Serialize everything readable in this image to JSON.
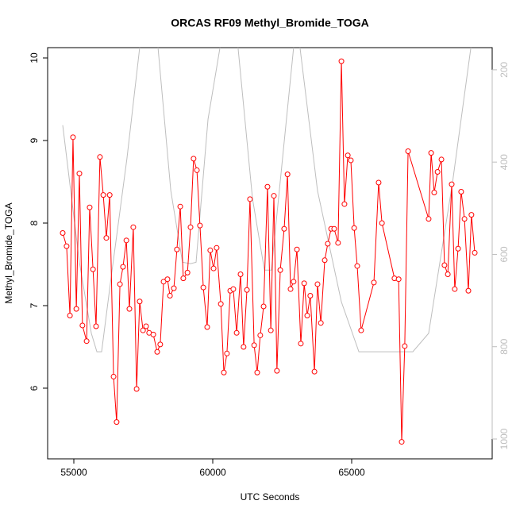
{
  "chart_data": {
    "type": "line",
    "title": "ORCAS RF09 Methyl_Bromide_TOGA",
    "x_label": "UTC Seconds",
    "y_label": "Methyl_Bromide_TOGA",
    "xlim": [
      54057,
      70057
    ],
    "ylim": [
      5.144,
      10.125
    ],
    "y2lim": [
      1043,
      152
    ],
    "xticks": [
      55000,
      60000,
      65000
    ],
    "yticks": [
      6,
      7,
      8,
      9,
      10
    ],
    "y2ticks": [
      200,
      400,
      600,
      800,
      1000
    ],
    "series": [
      {
        "color": "#bebebe",
        "axis": "y2",
        "markers": false,
        "x": [
          54600,
          55200,
          55630,
          55830,
          56000,
          56340,
          56910,
          57370,
          57690,
          58030,
          58490,
          58910,
          59200,
          59400,
          59830,
          60260,
          60570,
          60910,
          61430,
          61860,
          62110,
          62510,
          62910,
          63030,
          63140,
          63770,
          64630,
          65260,
          67200,
          67770,
          68630,
          69290,
          69490
        ],
        "values": [
          320,
          617,
          771,
          811,
          811,
          651,
          393,
          152,
          117,
          152,
          462,
          617,
          620,
          617,
          307,
          152,
          117,
          152,
          479,
          634,
          634,
          393,
          152,
          135,
          152,
          462,
          703,
          811,
          811,
          771,
          444,
          152,
          100
        ]
      },
      {
        "color": "#ff0000",
        "axis": "y",
        "markers": true,
        "x": [
          54600,
          54740,
          54860,
          54970,
          55090,
          55200,
          55310,
          55460,
          55570,
          55690,
          55800,
          55940,
          56060,
          56170,
          56290,
          56430,
          56540,
          56660,
          56770,
          56890,
          57000,
          57140,
          57260,
          57370,
          57490,
          57600,
          57710,
          57860,
          58000,
          58110,
          58230,
          58370,
          58460,
          58600,
          58710,
          58830,
          58940,
          59090,
          59200,
          59310,
          59430,
          59540,
          59660,
          59800,
          59910,
          60030,
          60140,
          60290,
          60400,
          60510,
          60630,
          60740,
          60860,
          61000,
          61110,
          61230,
          61340,
          61490,
          61600,
          61710,
          61830,
          61970,
          62090,
          62200,
          62310,
          62430,
          62570,
          62690,
          62800,
          62910,
          63030,
          63170,
          63290,
          63400,
          63510,
          63660,
          63770,
          63890,
          64030,
          64140,
          64260,
          64370,
          64510,
          64630,
          64740,
          64860,
          64970,
          65090,
          65200,
          65340,
          65800,
          65970,
          66090,
          66540,
          66690,
          66800,
          66910,
          67030,
          67770,
          67860,
          67970,
          68090,
          68230,
          68340,
          68460,
          68600,
          68710,
          68830,
          68940,
          69060,
          69200,
          69310,
          69430
        ],
        "values": [
          7.88,
          7.72,
          6.88,
          9.04,
          6.96,
          8.6,
          6.76,
          6.57,
          8.19,
          7.44,
          6.75,
          8.8,
          8.34,
          7.82,
          8.34,
          6.14,
          5.59,
          7.26,
          7.47,
          7.79,
          6.96,
          7.95,
          5.99,
          7.05,
          6.7,
          6.75,
          6.67,
          6.65,
          6.44,
          6.53,
          7.29,
          7.32,
          7.12,
          7.21,
          7.68,
          8.2,
          7.33,
          7.4,
          7.95,
          8.78,
          8.64,
          7.97,
          7.22,
          6.74,
          7.67,
          7.45,
          7.7,
          7.02,
          6.19,
          6.42,
          7.18,
          7.2,
          6.67,
          7.38,
          6.5,
          7.19,
          8.29,
          6.52,
          6.19,
          6.64,
          6.99,
          8.44,
          6.7,
          8.33,
          6.21,
          7.43,
          7.93,
          8.59,
          7.2,
          7.29,
          7.68,
          6.54,
          7.27,
          6.88,
          7.12,
          6.2,
          7.26,
          6.79,
          7.55,
          7.75,
          7.93,
          7.93,
          7.76,
          9.96,
          8.23,
          8.82,
          8.76,
          7.94,
          7.48,
          6.7,
          7.28,
          8.49,
          8.0,
          7.33,
          7.32,
          5.35,
          6.51,
          8.87,
          8.05,
          8.85,
          8.37,
          8.62,
          8.77,
          7.49,
          7.38,
          8.47,
          7.2,
          7.69,
          8.38,
          8.05,
          7.18,
          8.1,
          7.64
        ]
      }
    ]
  }
}
